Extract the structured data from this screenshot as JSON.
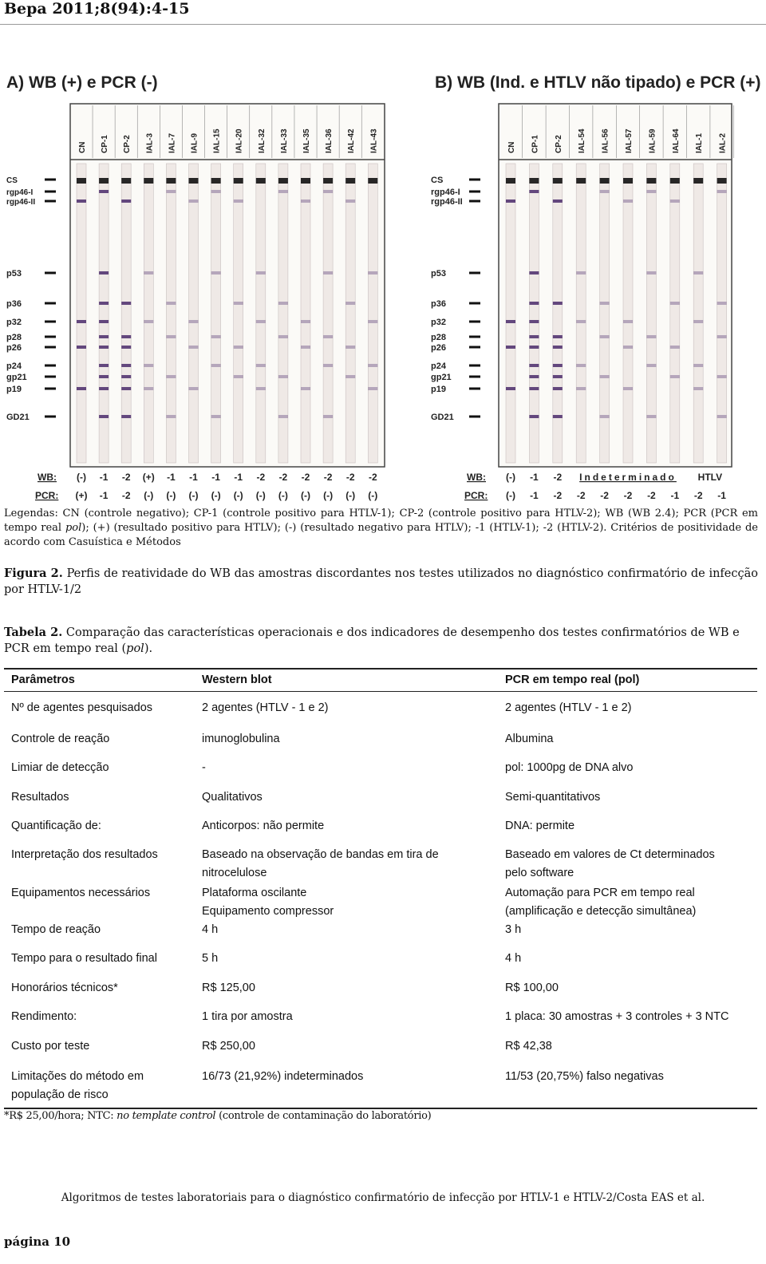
{
  "header": {
    "title": "Bepa 2011;8(94):4-15"
  },
  "figure": {
    "panel_a": {
      "title": "A) WB (+) e PCR (-)",
      "lanes": [
        "CN",
        "CP-1",
        "CP-2",
        "IAL-3",
        "IAL-7",
        "IAL-9",
        "IAL-15",
        "IAL-20",
        "IAL-32",
        "IAL-33",
        "IAL-35",
        "IAL-36",
        "IAL-42",
        "IAL-43"
      ],
      "wb_label": "WB:",
      "pcr_label": "PCR:",
      "wb": [
        "(-)",
        "-1",
        "-2",
        "(+)",
        "-1",
        "-1",
        "-1",
        "-1",
        "-2",
        "-2",
        "-2",
        "-2",
        "-2",
        "-2"
      ],
      "pcr": [
        "(+)",
        "-1",
        "-2",
        "(-)",
        "(-)",
        "(-)",
        "(-)",
        "(-)",
        "(-)",
        "(-)",
        "(-)",
        "(-)",
        "(-)",
        "(-)"
      ]
    },
    "panel_b": {
      "title": "B) WB (Ind. e HTLV não tipado) e PCR (+)",
      "lanes": [
        "CN",
        "CP-1",
        "CP-2",
        "IAL-54",
        "IAL-56",
        "IAL-57",
        "IAL-59",
        "IAL-64",
        "IAL-1",
        "IAL-2"
      ],
      "wb_label": "WB:",
      "pcr_label": "PCR:",
      "wb": [
        "(-)",
        "-1",
        "-2",
        "Indeterminado",
        "HTLV"
      ],
      "pcr": [
        "(-)",
        "-1",
        "-2",
        "-2",
        "-2",
        "-2",
        "-2",
        "-1",
        "-2",
        "-1"
      ]
    },
    "bands": [
      "CS",
      "rgp46-I",
      "rgp46-II",
      "p53",
      "p36",
      "p32",
      "p28",
      "p26",
      "p24",
      "gp21",
      "p19",
      "GD21"
    ],
    "legend": [
      "Legendas: CN (controle negativo); CP-1 (controle positivo para HTLV-1); CP-2 (controle positivo para HTLV-2); WB (WB 2.4); PCR (PCR em tempo real ",
      "pol",
      "); (+) (resultado positivo para HTLV); (-) (resultado negativo para HTLV); -1 (HTLV-1); -2 (HTLV-2). Critérios de positividade de acordo com Casuística e Métodos"
    ],
    "caption_label": "Figura 2.",
    "caption": "Perfis de reatividade do WB das amostras discordantes nos testes utilizados no diagnóstico confirmatório de infecção por HTLV-1/2"
  },
  "table": {
    "caption_label": "Tabela 2.",
    "caption": [
      "Comparação das características operacionais e dos indicadores de desempenho dos testes confirmatórios de WB e PCR em tempo real (",
      "pol",
      "). "
    ],
    "header": [
      "Parâmetros",
      "Western blot",
      "PCR em tempo real (pol)"
    ],
    "rows": [
      [
        [
          "Nº de agentes pesquisados"
        ],
        [
          "2 agentes (HTLV - 1 e 2)"
        ],
        [
          "2 agentes (HTLV - 1 e 2)"
        ]
      ],
      [
        [
          "Controle de reação"
        ],
        [
          "imunoglobulina"
        ],
        [
          "Albumina"
        ]
      ],
      [
        [
          "Limiar de detecção"
        ],
        [
          "-"
        ],
        [
          "pol: 1000pg de DNA alvo"
        ]
      ],
      [
        [
          "Resultados"
        ],
        [
          "Qualitativos"
        ],
        [
          "Semi-quantitativos"
        ]
      ],
      [
        [
          "Quantificação de:"
        ],
        [
          "Anticorpos: não permite"
        ],
        [
          "DNA: permite"
        ]
      ],
      [
        [
          "Interpretação dos resultados"
        ],
        [
          "Baseado na observação de bandas em tira de",
          "nitrocelulose"
        ],
        [
          "Baseado em valores de Ct determinados",
          "pelo software"
        ]
      ],
      [
        [
          "Equipamentos necessários"
        ],
        [
          "Plataforma oscilante",
          "Equipamento compressor"
        ],
        [
          "Automação para PCR em tempo real",
          "(amplificação e detecção simultânea)"
        ]
      ],
      [
        [
          "Tempo de reação"
        ],
        [
          "4 h"
        ],
        [
          "3 h"
        ]
      ],
      [
        [
          "Tempo para o resultado final"
        ],
        [
          "5 h"
        ],
        [
          "4 h"
        ]
      ],
      [
        [
          "Honorários técnicos*"
        ],
        [
          "R$ 125,00"
        ],
        [
          "R$ 100,00"
        ]
      ],
      [
        [
          "Rendimento:"
        ],
        [
          "1 tira por amostra"
        ],
        [
          "1 placa: 30 amostras + 3 controles + 3 NTC"
        ]
      ],
      [
        [
          "Custo por teste"
        ],
        [
          "R$ 250,00"
        ],
        [
          "R$ 42,38"
        ]
      ],
      [
        [
          "Limitações do método em",
          "população de risco"
        ],
        [
          "16/73 (21,92%) indeterminados"
        ],
        [
          "11/53 (20,75%) falso negativas"
        ]
      ]
    ],
    "footnote": [
      "*R$ 25,00/hora; NTC: ",
      "no template control",
      " (controle de contaminação do laboratório)"
    ]
  },
  "footer": {
    "text": "Algoritmos de testes laboratoriais para o diagnóstico confirmatório de infecção por HTLV-1 e HTLV-2/Costa EAS et al.",
    "page": "página 10"
  }
}
